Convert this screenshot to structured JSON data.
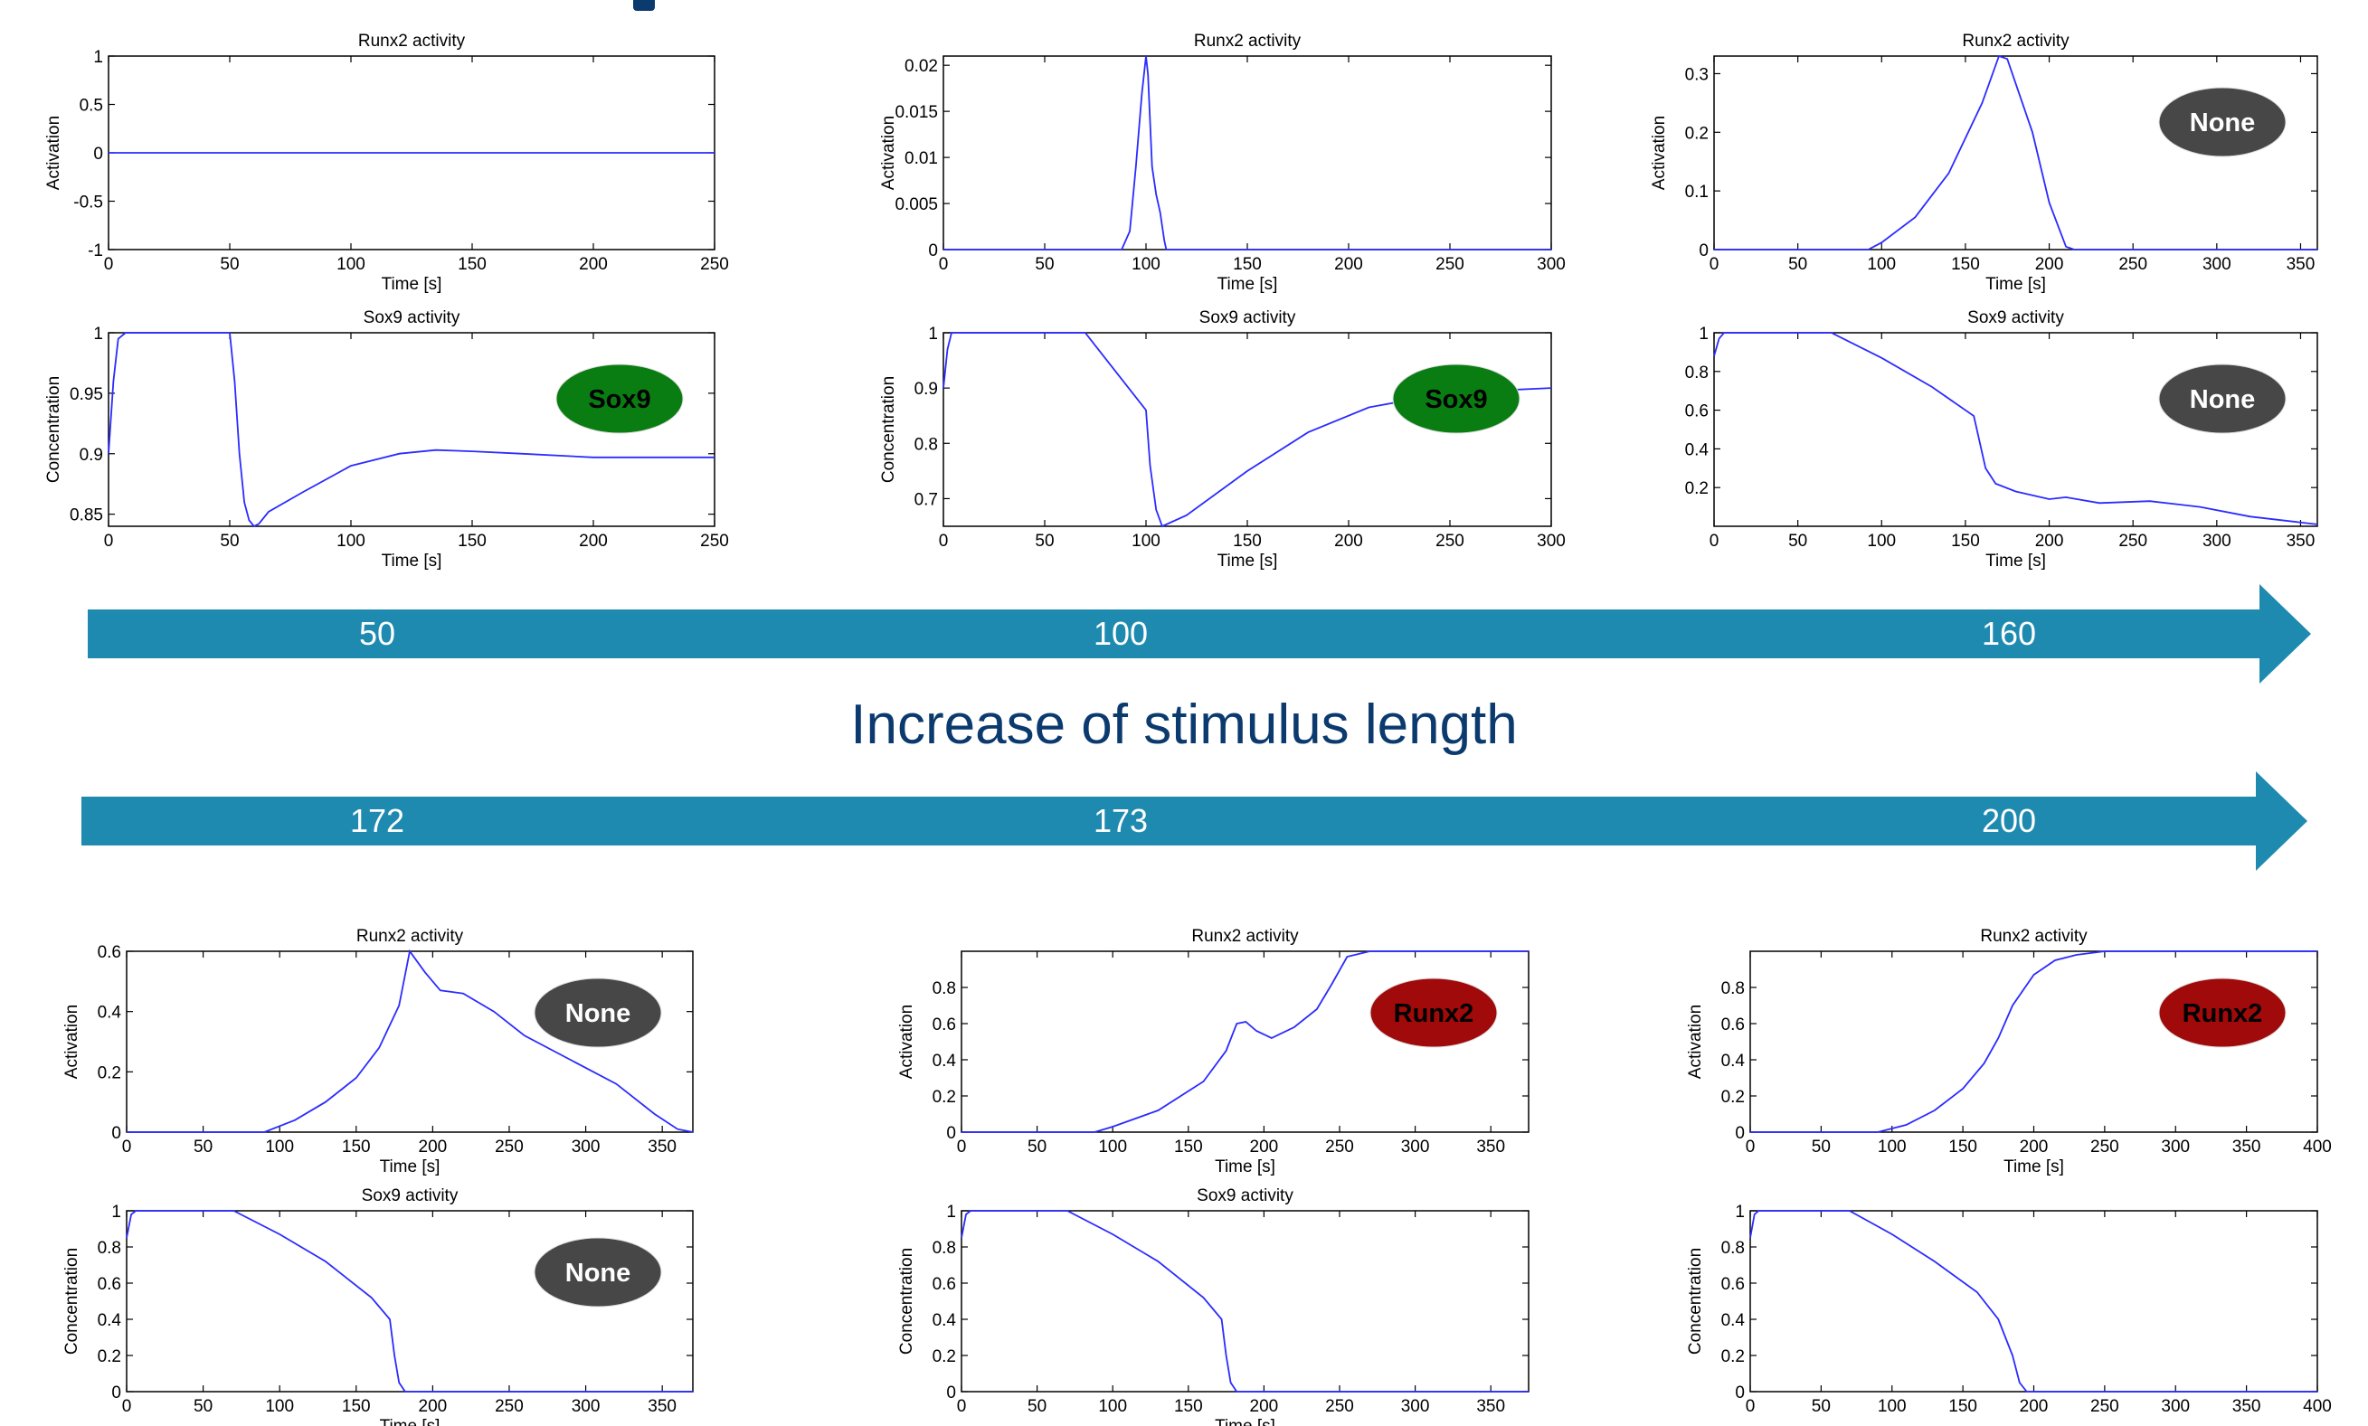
{
  "heading": "Increase of stimulus length",
  "colors": {
    "arrow": "#1f8ab0",
    "heading": "#0b3a6e",
    "line": "#2b2bff",
    "badge_sox9": "#0a7d12",
    "badge_none": "#474747",
    "badge_runx2": "#a00a0a"
  },
  "arrows": [
    {
      "labels": [
        "50",
        "100",
        "160"
      ]
    },
    {
      "labels": [
        "172",
        "173",
        "200"
      ]
    }
  ],
  "chart_data": [
    {
      "type": "line",
      "title": "Runx2 activity",
      "xlabel": "Time [s]",
      "ylabel": "Activation",
      "xlim": [
        0,
        250
      ],
      "ylim": [
        -1,
        1
      ],
      "xticks": [
        0,
        50,
        100,
        150,
        200,
        250
      ],
      "yticks": [
        -1,
        -0.5,
        0,
        0.5,
        1
      ],
      "series": [
        {
          "x": [
            0,
            250
          ],
          "y": [
            0,
            0
          ]
        }
      ],
      "badge": null
    },
    {
      "type": "line",
      "title": "Runx2 activity",
      "xlabel": "Time [s]",
      "ylabel": "Activation",
      "xlim": [
        0,
        300
      ],
      "ylim": [
        0,
        0.021
      ],
      "xticks": [
        0,
        50,
        100,
        150,
        200,
        250,
        300
      ],
      "yticks": [
        0,
        0.005,
        0.01,
        0.015,
        0.02
      ],
      "series": [
        {
          "x": [
            0,
            88,
            92,
            95,
            98,
            100,
            101,
            103,
            105,
            107,
            109,
            110,
            300
          ],
          "y": [
            0,
            0,
            0.002,
            0.009,
            0.017,
            0.021,
            0.019,
            0.009,
            0.006,
            0.004,
            0.001,
            0,
            0
          ]
        }
      ],
      "badge": null
    },
    {
      "type": "line",
      "title": "Runx2 activity",
      "xlabel": "Time [s]",
      "ylabel": "Activation",
      "xlim": [
        0,
        360
      ],
      "ylim": [
        0,
        0.33
      ],
      "xticks": [
        0,
        50,
        100,
        150,
        200,
        250,
        300,
        350
      ],
      "yticks": [
        0,
        0.1,
        0.2,
        0.3
      ],
      "series": [
        {
          "x": [
            0,
            92,
            100,
            120,
            140,
            160,
            170,
            175,
            190,
            200,
            210,
            215,
            360
          ],
          "y": [
            0,
            0,
            0.012,
            0.055,
            0.13,
            0.25,
            0.33,
            0.325,
            0.2,
            0.08,
            0.005,
            0,
            0
          ]
        }
      ],
      "badge": "None"
    },
    {
      "type": "line",
      "title": "Sox9 activity",
      "xlabel": "Time [s]",
      "ylabel": "Concentration",
      "xlim": [
        0,
        250
      ],
      "ylim": [
        0.84,
        1.0
      ],
      "xticks": [
        0,
        50,
        100,
        150,
        200,
        250
      ],
      "yticks": [
        0.85,
        0.9,
        0.95,
        1
      ],
      "series": [
        {
          "x": [
            0,
            2,
            4,
            7,
            10,
            50,
            52,
            54,
            56,
            58,
            60,
            62,
            66,
            80,
            100,
            120,
            135,
            150,
            170,
            200,
            250
          ],
          "y": [
            0.9,
            0.96,
            0.995,
            1.0,
            1.0,
            1.0,
            0.96,
            0.9,
            0.86,
            0.845,
            0.84,
            0.842,
            0.852,
            0.868,
            0.89,
            0.9,
            0.903,
            0.902,
            0.9,
            0.897,
            0.897
          ]
        }
      ],
      "badge": "Sox9"
    },
    {
      "type": "line",
      "title": "Sox9 activity",
      "xlabel": "Time [s]",
      "ylabel": "Concentration",
      "xlim": [
        0,
        300
      ],
      "ylim": [
        0.65,
        1.0
      ],
      "xticks": [
        0,
        50,
        100,
        150,
        200,
        250,
        300
      ],
      "yticks": [
        0.7,
        0.8,
        0.9,
        1
      ],
      "series": [
        {
          "x": [
            0,
            2,
            4,
            70,
            85,
            100,
            102,
            105,
            108,
            120,
            150,
            180,
            210,
            240,
            270,
            300
          ],
          "y": [
            0.9,
            0.97,
            1.0,
            1.0,
            0.93,
            0.86,
            0.76,
            0.68,
            0.65,
            0.67,
            0.75,
            0.82,
            0.865,
            0.885,
            0.895,
            0.9
          ]
        }
      ],
      "badge": "Sox9"
    },
    {
      "type": "line",
      "title": "Sox9 activity",
      "xlabel": "Time [s]",
      "ylabel": "",
      "xlim": [
        0,
        360
      ],
      "ylim": [
        0,
        1.0
      ],
      "xticks": [
        0,
        50,
        100,
        150,
        200,
        250,
        300,
        350
      ],
      "yticks": [
        0.2,
        0.4,
        0.6,
        0.8,
        1
      ],
      "series": [
        {
          "x": [
            0,
            3,
            6,
            70,
            100,
            130,
            155,
            162,
            168,
            180,
            200,
            210,
            230,
            260,
            290,
            320,
            360
          ],
          "y": [
            0.88,
            0.97,
            1.0,
            1.0,
            0.87,
            0.72,
            0.57,
            0.3,
            0.22,
            0.18,
            0.14,
            0.15,
            0.12,
            0.13,
            0.1,
            0.05,
            0.01
          ]
        }
      ],
      "badge": "None"
    },
    {
      "type": "line",
      "title": "Runx2 activity",
      "xlabel": "Time [s]",
      "ylabel": "Activation",
      "xlim": [
        0,
        370
      ],
      "ylim": [
        0,
        0.6
      ],
      "xticks": [
        0,
        50,
        100,
        150,
        200,
        250,
        300,
        350
      ],
      "yticks": [
        0,
        0.2,
        0.4,
        0.6
      ],
      "series": [
        {
          "x": [
            0,
            90,
            110,
            130,
            150,
            165,
            178,
            185,
            195,
            205,
            220,
            240,
            260,
            290,
            320,
            345,
            360,
            370
          ],
          "y": [
            0,
            0,
            0.04,
            0.1,
            0.18,
            0.28,
            0.42,
            0.6,
            0.53,
            0.47,
            0.46,
            0.4,
            0.32,
            0.24,
            0.16,
            0.06,
            0.01,
            0
          ]
        }
      ],
      "badge": "None"
    },
    {
      "type": "line",
      "title": "Runx2 activity",
      "xlabel": "Time [s]",
      "ylabel": "Activation",
      "xlim": [
        0,
        375
      ],
      "ylim": [
        0,
        1.0
      ],
      "xticks": [
        0,
        50,
        100,
        150,
        200,
        250,
        300,
        350
      ],
      "yticks": [
        0,
        0.2,
        0.4,
        0.6,
        0.8
      ],
      "series": [
        {
          "x": [
            0,
            88,
            100,
            130,
            160,
            175,
            182,
            188,
            195,
            205,
            220,
            235,
            245,
            255,
            270,
            375
          ],
          "y": [
            0,
            0,
            0.03,
            0.12,
            0.28,
            0.45,
            0.6,
            0.61,
            0.56,
            0.52,
            0.58,
            0.68,
            0.82,
            0.97,
            1.0,
            1.0
          ]
        }
      ],
      "badge": "Runx2"
    },
    {
      "type": "line",
      "title": "Runx2 activity",
      "xlabel": "Time [s]",
      "ylabel": "Activation",
      "xlim": [
        0,
        400
      ],
      "ylim": [
        0,
        1.0
      ],
      "xticks": [
        0,
        50,
        100,
        150,
        200,
        250,
        300,
        350,
        400
      ],
      "yticks": [
        0,
        0.2,
        0.4,
        0.6,
        0.8
      ],
      "series": [
        {
          "x": [
            0,
            90,
            110,
            130,
            150,
            165,
            175,
            185,
            200,
            215,
            230,
            250,
            400
          ],
          "y": [
            0,
            0,
            0.04,
            0.12,
            0.24,
            0.38,
            0.52,
            0.7,
            0.87,
            0.95,
            0.98,
            1.0,
            1.0
          ]
        }
      ],
      "badge": "Runx2"
    },
    {
      "type": "line",
      "title": "Sox9 activity",
      "xlabel": "Time [s]",
      "ylabel": "Concentration",
      "xlim": [
        0,
        370
      ],
      "ylim": [
        0,
        1.0
      ],
      "xticks": [
        0,
        50,
        100,
        150,
        200,
        250,
        300,
        350
      ],
      "yticks": [
        0,
        0.2,
        0.4,
        0.6,
        0.8,
        1
      ],
      "series": [
        {
          "x": [
            0,
            3,
            6,
            70,
            100,
            130,
            160,
            172,
            175,
            178,
            182,
            370
          ],
          "y": [
            0.85,
            0.98,
            1.0,
            1.0,
            0.87,
            0.72,
            0.52,
            0.4,
            0.2,
            0.05,
            0,
            0
          ]
        }
      ],
      "badge": "None"
    },
    {
      "type": "line",
      "title": "Sox9 activity",
      "xlabel": "Time [s]",
      "ylabel": "Concentration",
      "xlim": [
        0,
        375
      ],
      "ylim": [
        0,
        1.0
      ],
      "xticks": [
        0,
        50,
        100,
        150,
        200,
        250,
        300,
        350
      ],
      "yticks": [
        0,
        0.2,
        0.4,
        0.6,
        0.8,
        1
      ],
      "series": [
        {
          "x": [
            0,
            3,
            6,
            70,
            100,
            130,
            160,
            172,
            175,
            178,
            182,
            375
          ],
          "y": [
            0.85,
            0.98,
            1.0,
            1.0,
            0.87,
            0.72,
            0.52,
            0.4,
            0.2,
            0.05,
            0,
            0
          ]
        }
      ],
      "badge": null
    },
    {
      "type": "line",
      "title": "",
      "xlabel": "",
      "ylabel": "Concentration",
      "xlim": [
        0,
        400
      ],
      "ylim": [
        0,
        1.0
      ],
      "xticks": [
        0,
        50,
        100,
        150,
        200,
        250,
        300,
        350,
        400
      ],
      "yticks": [
        0,
        0.2,
        0.4,
        0.6,
        0.8,
        1
      ],
      "series": [
        {
          "x": [
            0,
            3,
            6,
            70,
            100,
            130,
            160,
            175,
            185,
            190,
            195,
            400
          ],
          "y": [
            0.85,
            0.98,
            1.0,
            1.0,
            0.87,
            0.72,
            0.55,
            0.4,
            0.2,
            0.05,
            0,
            0
          ]
        }
      ],
      "badge": null
    }
  ]
}
